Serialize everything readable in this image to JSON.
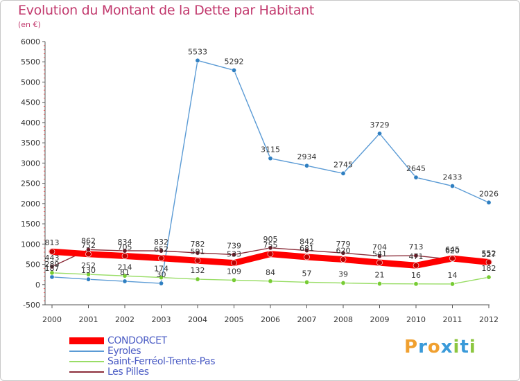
{
  "header": {
    "title": "Evolution du Montant de la Dette par Habitant",
    "subtitle": "(en €)"
  },
  "brand": {
    "letters": [
      "P",
      "r",
      "o",
      "x",
      "i",
      "t",
      "i"
    ],
    "colors": [
      "#f0a030",
      "#3a9ad9",
      "#f0a030",
      "#3a9ad9",
      "#8cc63f",
      "#3a9ad9",
      "#8cc63f"
    ]
  },
  "chart_data": {
    "type": "line",
    "x": [
      "2000",
      "2001",
      "2002",
      "2003",
      "2004",
      "2005",
      "2006",
      "2007",
      "2008",
      "2009",
      "2010",
      "2011",
      "2012"
    ],
    "ylim": [
      -500,
      6000
    ],
    "yticks": [
      "-500",
      "0",
      "500",
      "1000",
      "1500",
      "2000",
      "2500",
      "3000",
      "3500",
      "4000",
      "4500",
      "5000",
      "5500",
      "6000"
    ],
    "grid": false,
    "legend_position": "bottom-left",
    "series": [
      {
        "name": "CONDORCET",
        "color": "#ff0000",
        "values": [
          813,
          752,
          705,
          652,
          591,
          533,
          755,
          681,
          620,
          541,
          471,
          645,
          552
        ],
        "labels": [
          "813",
          "752",
          "705",
          "652",
          "591",
          "533",
          "755",
          "681",
          "620",
          "541",
          "471",
          "645",
          "552"
        ]
      },
      {
        "name": "Eyroles",
        "color": "#5b9bd5",
        "values": [
          187,
          130,
          81,
          30,
          5533,
          5292,
          3115,
          2934,
          2745,
          3729,
          2645,
          2433,
          2026
        ],
        "labels": [
          "187",
          "130",
          "81",
          "30",
          "5533",
          "5292",
          "3115",
          "2934",
          "2745",
          "3729",
          "2645",
          "2433",
          "2026"
        ]
      },
      {
        "name": "Saint-Ferréol-Trente-Pas",
        "color": "#99dd66",
        "values": [
          289,
          252,
          214,
          174,
          132,
          109,
          84,
          57,
          39,
          21,
          16,
          14,
          182
        ],
        "labels": [
          "289",
          "252",
          "214",
          "174",
          "132",
          "109",
          "84",
          "57",
          "39",
          "21",
          "16",
          "14",
          "182"
        ]
      },
      {
        "name": "Les Pilles",
        "color": "#8b2d3a",
        "values": [
          443,
          862,
          834,
          832,
          782,
          739,
          905,
          842,
          779,
          704,
          713,
          620,
          527
        ],
        "labels": [
          "443",
          "862",
          "834",
          "832",
          "782",
          "739",
          "905",
          "842",
          "779",
          "704",
          "713",
          "620",
          "527"
        ]
      }
    ]
  }
}
